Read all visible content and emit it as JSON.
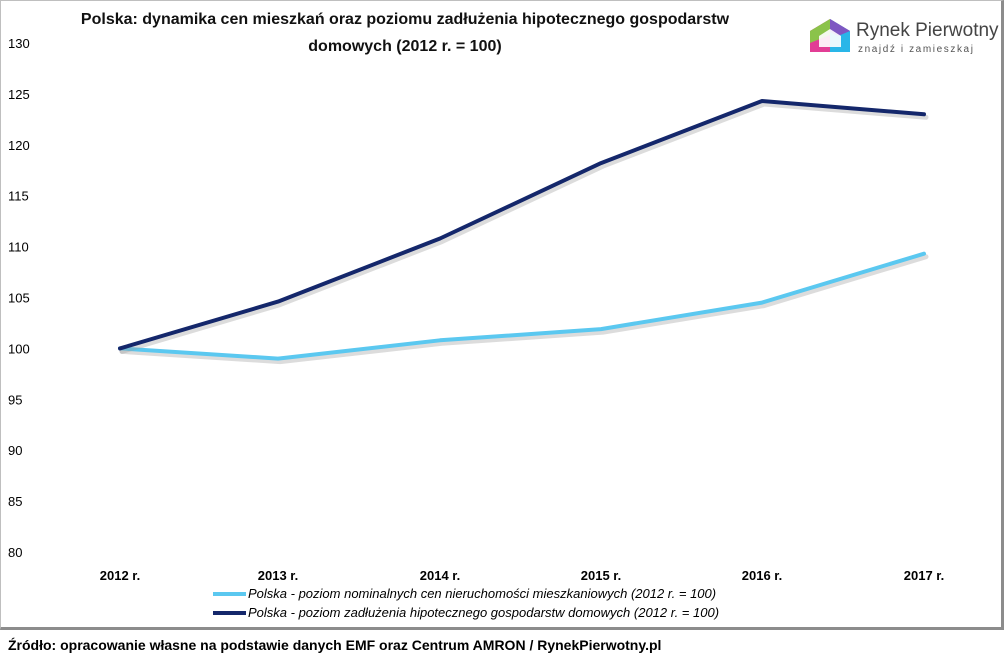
{
  "title_line1": "Polska: dynamika cen mieszkań oraz poziomu zadłużenia hipotecznego gospodarstw",
  "title_line2": "domowych (2012 r. = 100)",
  "brand": {
    "name": "Rynek Pierwotny",
    "tagline": "znajdź i zamieszkaj"
  },
  "source": "Źródło: opracowanie własne na podstawie danych EMF oraz Centrum AMRON / RynekPierwotny.pl",
  "chart_data": {
    "type": "line",
    "categories": [
      "2012 r.",
      "2013 r.",
      "2014 r.",
      "2015 r.",
      "2016 r.",
      "2017 r."
    ],
    "ylim": [
      80,
      130
    ],
    "yticks": [
      80,
      85,
      90,
      95,
      100,
      105,
      110,
      115,
      120,
      125,
      130
    ],
    "grid": false,
    "legend_position": "bottom",
    "series": [
      {
        "name": "Polska - poziom nominalnych cen nieruchomości mieszkaniowych (2012 r. = 100)",
        "color": "#5bc8f0",
        "values": [
          100,
          99,
          100.8,
          101.9,
          104.5,
          109.3
        ]
      },
      {
        "name": "Polska - poziom zadłużenia hipotecznego gospodarstw domowych (2012 r. = 100)",
        "color": "#14276b",
        "values": [
          100,
          104.6,
          110.8,
          118.2,
          124.3,
          123
        ]
      }
    ]
  }
}
